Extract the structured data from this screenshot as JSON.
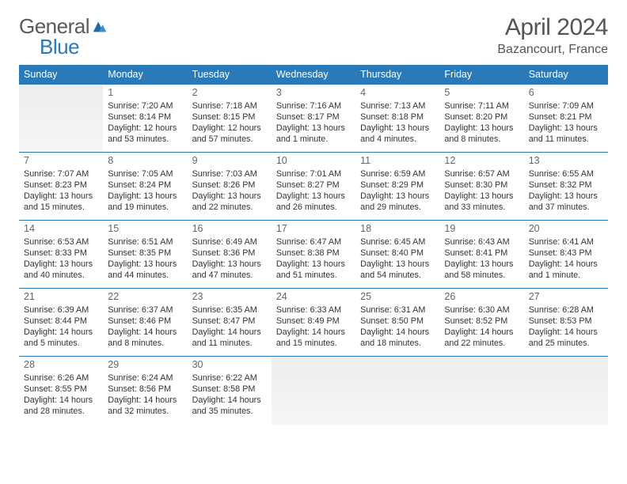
{
  "brand": {
    "name_a": "General",
    "name_b": "Blue"
  },
  "title": "April 2024",
  "location": "Bazancourt, France",
  "theme": {
    "accent": "#2a7ab9",
    "text": "#333333",
    "muted": "#666666",
    "header_text": "#ffffff",
    "empty_bg": "#efefef",
    "page_bg": "#ffffff"
  },
  "weekdays": [
    "Sunday",
    "Monday",
    "Tuesday",
    "Wednesday",
    "Thursday",
    "Friday",
    "Saturday"
  ],
  "weeks": [
    [
      null,
      {
        "n": "1",
        "sr": "Sunrise: 7:20 AM",
        "ss": "Sunset: 8:14 PM",
        "dl1": "Daylight: 12 hours",
        "dl2": "and 53 minutes."
      },
      {
        "n": "2",
        "sr": "Sunrise: 7:18 AM",
        "ss": "Sunset: 8:15 PM",
        "dl1": "Daylight: 12 hours",
        "dl2": "and 57 minutes."
      },
      {
        "n": "3",
        "sr": "Sunrise: 7:16 AM",
        "ss": "Sunset: 8:17 PM",
        "dl1": "Daylight: 13 hours",
        "dl2": "and 1 minute."
      },
      {
        "n": "4",
        "sr": "Sunrise: 7:13 AM",
        "ss": "Sunset: 8:18 PM",
        "dl1": "Daylight: 13 hours",
        "dl2": "and 4 minutes."
      },
      {
        "n": "5",
        "sr": "Sunrise: 7:11 AM",
        "ss": "Sunset: 8:20 PM",
        "dl1": "Daylight: 13 hours",
        "dl2": "and 8 minutes."
      },
      {
        "n": "6",
        "sr": "Sunrise: 7:09 AM",
        "ss": "Sunset: 8:21 PM",
        "dl1": "Daylight: 13 hours",
        "dl2": "and 11 minutes."
      }
    ],
    [
      {
        "n": "7",
        "sr": "Sunrise: 7:07 AM",
        "ss": "Sunset: 8:23 PM",
        "dl1": "Daylight: 13 hours",
        "dl2": "and 15 minutes."
      },
      {
        "n": "8",
        "sr": "Sunrise: 7:05 AM",
        "ss": "Sunset: 8:24 PM",
        "dl1": "Daylight: 13 hours",
        "dl2": "and 19 minutes."
      },
      {
        "n": "9",
        "sr": "Sunrise: 7:03 AM",
        "ss": "Sunset: 8:26 PM",
        "dl1": "Daylight: 13 hours",
        "dl2": "and 22 minutes."
      },
      {
        "n": "10",
        "sr": "Sunrise: 7:01 AM",
        "ss": "Sunset: 8:27 PM",
        "dl1": "Daylight: 13 hours",
        "dl2": "and 26 minutes."
      },
      {
        "n": "11",
        "sr": "Sunrise: 6:59 AM",
        "ss": "Sunset: 8:29 PM",
        "dl1": "Daylight: 13 hours",
        "dl2": "and 29 minutes."
      },
      {
        "n": "12",
        "sr": "Sunrise: 6:57 AM",
        "ss": "Sunset: 8:30 PM",
        "dl1": "Daylight: 13 hours",
        "dl2": "and 33 minutes."
      },
      {
        "n": "13",
        "sr": "Sunrise: 6:55 AM",
        "ss": "Sunset: 8:32 PM",
        "dl1": "Daylight: 13 hours",
        "dl2": "and 37 minutes."
      }
    ],
    [
      {
        "n": "14",
        "sr": "Sunrise: 6:53 AM",
        "ss": "Sunset: 8:33 PM",
        "dl1": "Daylight: 13 hours",
        "dl2": "and 40 minutes."
      },
      {
        "n": "15",
        "sr": "Sunrise: 6:51 AM",
        "ss": "Sunset: 8:35 PM",
        "dl1": "Daylight: 13 hours",
        "dl2": "and 44 minutes."
      },
      {
        "n": "16",
        "sr": "Sunrise: 6:49 AM",
        "ss": "Sunset: 8:36 PM",
        "dl1": "Daylight: 13 hours",
        "dl2": "and 47 minutes."
      },
      {
        "n": "17",
        "sr": "Sunrise: 6:47 AM",
        "ss": "Sunset: 8:38 PM",
        "dl1": "Daylight: 13 hours",
        "dl2": "and 51 minutes."
      },
      {
        "n": "18",
        "sr": "Sunrise: 6:45 AM",
        "ss": "Sunset: 8:40 PM",
        "dl1": "Daylight: 13 hours",
        "dl2": "and 54 minutes."
      },
      {
        "n": "19",
        "sr": "Sunrise: 6:43 AM",
        "ss": "Sunset: 8:41 PM",
        "dl1": "Daylight: 13 hours",
        "dl2": "and 58 minutes."
      },
      {
        "n": "20",
        "sr": "Sunrise: 6:41 AM",
        "ss": "Sunset: 8:43 PM",
        "dl1": "Daylight: 14 hours",
        "dl2": "and 1 minute."
      }
    ],
    [
      {
        "n": "21",
        "sr": "Sunrise: 6:39 AM",
        "ss": "Sunset: 8:44 PM",
        "dl1": "Daylight: 14 hours",
        "dl2": "and 5 minutes."
      },
      {
        "n": "22",
        "sr": "Sunrise: 6:37 AM",
        "ss": "Sunset: 8:46 PM",
        "dl1": "Daylight: 14 hours",
        "dl2": "and 8 minutes."
      },
      {
        "n": "23",
        "sr": "Sunrise: 6:35 AM",
        "ss": "Sunset: 8:47 PM",
        "dl1": "Daylight: 14 hours",
        "dl2": "and 11 minutes."
      },
      {
        "n": "24",
        "sr": "Sunrise: 6:33 AM",
        "ss": "Sunset: 8:49 PM",
        "dl1": "Daylight: 14 hours",
        "dl2": "and 15 minutes."
      },
      {
        "n": "25",
        "sr": "Sunrise: 6:31 AM",
        "ss": "Sunset: 8:50 PM",
        "dl1": "Daylight: 14 hours",
        "dl2": "and 18 minutes."
      },
      {
        "n": "26",
        "sr": "Sunrise: 6:30 AM",
        "ss": "Sunset: 8:52 PM",
        "dl1": "Daylight: 14 hours",
        "dl2": "and 22 minutes."
      },
      {
        "n": "27",
        "sr": "Sunrise: 6:28 AM",
        "ss": "Sunset: 8:53 PM",
        "dl1": "Daylight: 14 hours",
        "dl2": "and 25 minutes."
      }
    ],
    [
      {
        "n": "28",
        "sr": "Sunrise: 6:26 AM",
        "ss": "Sunset: 8:55 PM",
        "dl1": "Daylight: 14 hours",
        "dl2": "and 28 minutes."
      },
      {
        "n": "29",
        "sr": "Sunrise: 6:24 AM",
        "ss": "Sunset: 8:56 PM",
        "dl1": "Daylight: 14 hours",
        "dl2": "and 32 minutes."
      },
      {
        "n": "30",
        "sr": "Sunrise: 6:22 AM",
        "ss": "Sunset: 8:58 PM",
        "dl1": "Daylight: 14 hours",
        "dl2": "and 35 minutes."
      },
      null,
      null,
      null,
      null
    ]
  ]
}
